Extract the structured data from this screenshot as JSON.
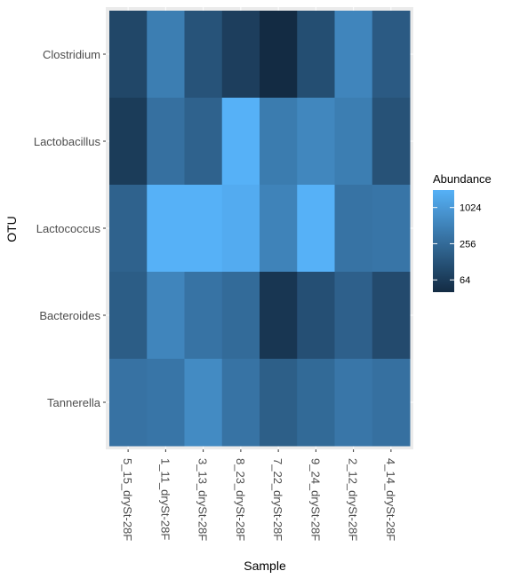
{
  "chart_data": {
    "type": "heatmap",
    "title": "",
    "xlabel": "Sample",
    "ylabel": "OTU",
    "x_categories": [
      "5_15_drySt-28F",
      "1_11_drySt-28F",
      "3_13_drySt-28F",
      "8_23_drySt-28F",
      "7_22_drySt-28F",
      "9_24_drySt-28F",
      "2_12_drySt-28F",
      "4_14_drySt-28F"
    ],
    "y_categories": [
      "Clostridium",
      "Lactobacillus",
      "Lactococcus",
      "Bacteroides",
      "Tannerella"
    ],
    "values": [
      [
        90,
        450,
        130,
        70,
        35,
        110,
        550,
        160
      ],
      [
        65,
        300,
        200,
        2800,
        420,
        580,
        450,
        125
      ],
      [
        200,
        2500,
        2500,
        1700,
        520,
        3000,
        330,
        350
      ],
      [
        170,
        560,
        330,
        260,
        55,
        115,
        190,
        100
      ],
      [
        320,
        350,
        650,
        330,
        180,
        250,
        360,
        300
      ]
    ],
    "color_scale": {
      "type": "log2",
      "low_color": "#132B43",
      "high_color": "#56B1F7",
      "min": 40,
      "max": 2000
    },
    "legend": {
      "title": "Abundance",
      "breaks": [
        64,
        256,
        1024
      ],
      "labels": [
        "64",
        "256",
        "1024"
      ],
      "position": "right"
    },
    "grid": true,
    "panel_background": "#EBEBEB"
  }
}
